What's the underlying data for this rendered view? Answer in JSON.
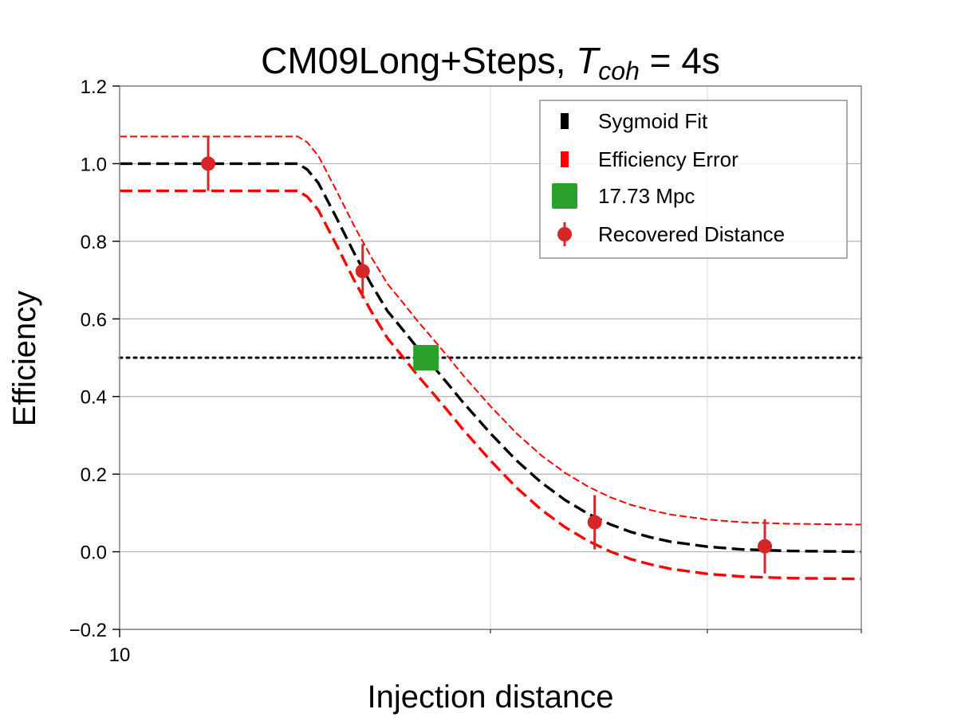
{
  "chart_data": {
    "type": "line",
    "title_main": "CM09Long+Steps, ",
    "title_symbol": "T",
    "title_subscript": "coh",
    "title_suffix": " = 4s",
    "xlabel": "Injection distance",
    "ylabel": "Efficiency",
    "x_scale": "log",
    "xlim": [
      10,
      40
    ],
    "ylim": [
      -0.2,
      1.2
    ],
    "x_ticks": [
      {
        "value": 10,
        "label": "10"
      }
    ],
    "x_minor_gridlines": [
      20,
      30
    ],
    "y_ticks": [
      {
        "value": -0.2,
        "label": "−0.2"
      },
      {
        "value": 0.0,
        "label": "0.0"
      },
      {
        "value": 0.2,
        "label": "0.2"
      },
      {
        "value": 0.4,
        "label": "0.4"
      },
      {
        "value": 0.6,
        "label": "0.6"
      },
      {
        "value": 0.8,
        "label": "0.8"
      },
      {
        "value": 1.0,
        "label": "1.0"
      },
      {
        "value": 1.2,
        "label": "1.2"
      }
    ],
    "threshold_line": {
      "y": 0.5,
      "style": "dotted",
      "color": "#000000"
    },
    "series": [
      {
        "name": "Sygmoid Fit",
        "role": "fit",
        "color": "#000000",
        "style": "dashed",
        "x": [
          10,
          13.95,
          14.2,
          14.5,
          15.0,
          15.5,
          16.0,
          16.5,
          17.0,
          17.5,
          17.73,
          18.0,
          18.5,
          19.0,
          20.0,
          21.0,
          22.0,
          23.0,
          24.0,
          25.0,
          26.0,
          27.0,
          28.0,
          30.0,
          32.0,
          35.0,
          40.0
        ],
        "y": [
          1.0,
          1.0,
          0.985,
          0.95,
          0.86,
          0.77,
          0.69,
          0.62,
          0.57,
          0.52,
          0.5,
          0.475,
          0.43,
          0.385,
          0.305,
          0.235,
          0.178,
          0.133,
          0.098,
          0.071,
          0.051,
          0.037,
          0.026,
          0.013,
          0.006,
          0.002,
          0.0
        ]
      },
      {
        "name": "Efficiency Error",
        "role": "upper",
        "color": "#ff0000",
        "style": "dashed-thin",
        "x": [
          10,
          13.95,
          14.2,
          14.5,
          15.0,
          15.5,
          16.0,
          16.5,
          17.0,
          17.5,
          18.0,
          18.5,
          19.0,
          20.0,
          21.0,
          22.0,
          23.0,
          24.0,
          25.0,
          26.0,
          27.0,
          28.0,
          30.0,
          32.0,
          35.0,
          40.0
        ],
        "y": [
          1.07,
          1.07,
          1.055,
          1.02,
          0.93,
          0.84,
          0.76,
          0.69,
          0.64,
          0.59,
          0.545,
          0.5,
          0.455,
          0.375,
          0.305,
          0.248,
          0.203,
          0.168,
          0.141,
          0.121,
          0.107,
          0.096,
          0.083,
          0.076,
          0.072,
          0.07
        ]
      },
      {
        "name": "",
        "role": "lower",
        "color": "#ff0000",
        "style": "dashed",
        "x": [
          10,
          13.95,
          14.2,
          14.5,
          15.0,
          15.5,
          16.0,
          16.5,
          17.0,
          17.5,
          18.0,
          18.5,
          19.0,
          20.0,
          21.0,
          22.0,
          23.0,
          24.0,
          25.0,
          26.0,
          27.0,
          28.0,
          30.0,
          32.0,
          35.0,
          40.0
        ],
        "y": [
          0.93,
          0.93,
          0.915,
          0.88,
          0.79,
          0.7,
          0.62,
          0.55,
          0.5,
          0.45,
          0.405,
          0.36,
          0.315,
          0.235,
          0.165,
          0.108,
          0.063,
          0.028,
          0.001,
          -0.019,
          -0.033,
          -0.044,
          -0.057,
          -0.064,
          -0.068,
          -0.07
        ]
      }
    ],
    "points": {
      "name": "Recovered Distance",
      "color": "#d62728",
      "x": [
        11.8,
        15.75,
        24.3,
        33.4
      ],
      "y": [
        1.0,
        0.723,
        0.076,
        0.014
      ],
      "yerr": [
        0.07,
        0.07,
        0.07,
        0.07
      ]
    },
    "marker": {
      "name": "17.73 Mpc",
      "x": 17.73,
      "y": 0.5,
      "color": "#2ca02c"
    },
    "legend": {
      "position": "top-right",
      "entries": [
        {
          "label": "Sygmoid Fit",
          "color": "#000000",
          "kind": "dash"
        },
        {
          "label": "Efficiency Error",
          "color": "#ff0000",
          "kind": "dash"
        },
        {
          "label": "17.73 Mpc",
          "color": "#2ca02c",
          "kind": "square"
        },
        {
          "label": "Recovered Distance",
          "color": "#d62728",
          "kind": "errorpoint"
        }
      ]
    }
  }
}
